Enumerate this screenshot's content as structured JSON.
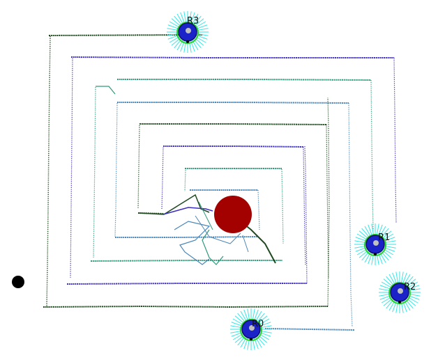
{
  "scene": {
    "robots": [
      {
        "label": "R0"
      },
      {
        "label": "R1"
      },
      {
        "label": "R2"
      },
      {
        "label": "R3"
      }
    ],
    "colors": {
      "robot_body": "#1a22c8",
      "robot_highlight": "#c0c0c0",
      "sensor_rays": "#33e6e6",
      "robot_ring": "#2bd62b",
      "target": "#a30000",
      "marker": "#000000",
      "trail_dark_green": "#1f4a1f",
      "trail_blue_purple": "#3b2ec0",
      "trail_teal": "#2e9a7a",
      "trail_steel_blue": "#4a86b8"
    }
  }
}
